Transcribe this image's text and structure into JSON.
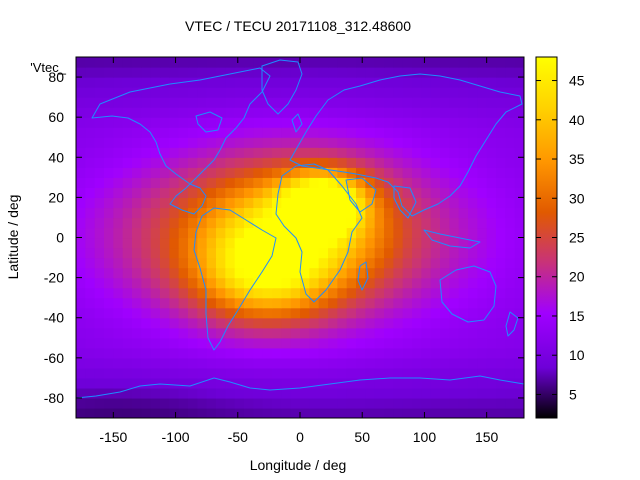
{
  "chart_data": {
    "type": "heatmap",
    "title": "VTEC / TECU 20171108_312.48600",
    "xlabel": "Longitude / deg",
    "ylabel": "Latitude / deg",
    "xlim": [
      -180,
      180
    ],
    "ylim": [
      -90,
      90
    ],
    "x_ticks": [
      -150,
      -100,
      -50,
      0,
      50,
      100,
      150
    ],
    "y_ticks": [
      -80,
      -60,
      -40,
      -20,
      0,
      20,
      40,
      60,
      80
    ],
    "colorbar": {
      "range": [
        2,
        48
      ],
      "ticks": [
        5,
        10,
        15,
        20,
        25,
        30,
        35,
        40,
        45
      ],
      "palette": [
        "#000000",
        "#6e00d8",
        "#a000ff",
        "#c8327a",
        "#e15a00",
        "#ff9600",
        "#ffd200",
        "#ffff00"
      ]
    },
    "legend_label": "'Vtec_",
    "overlay": "coastlines",
    "features": [
      {
        "lon": 20,
        "lat": 18,
        "value": 46,
        "sigma_lon": 22,
        "sigma_lat": 10
      },
      {
        "lon": -5,
        "lat": 4,
        "value": 38,
        "sigma_lon": 55,
        "sigma_lat": 22
      },
      {
        "lon": -30,
        "lat": -20,
        "value": 34,
        "sigma_lon": 38,
        "sigma_lat": 16
      },
      {
        "lon": 0,
        "lat": 0,
        "value": 30,
        "sigma_lon": 80,
        "sigma_lat": 32
      },
      {
        "lon": -120,
        "lat": 0,
        "value": 18,
        "sigma_lon": 60,
        "sigma_lat": 28
      },
      {
        "lon": 140,
        "lat": 0,
        "value": 14,
        "sigma_lon": 50,
        "sigma_lat": 30
      },
      {
        "lon": -140,
        "lat": -85,
        "value": 9,
        "sigma_lon": 60,
        "sigma_lat": 8
      }
    ],
    "background_vtec": 11
  },
  "colors": {
    "coastline": "#1e8cff",
    "frame": "#000000"
  }
}
